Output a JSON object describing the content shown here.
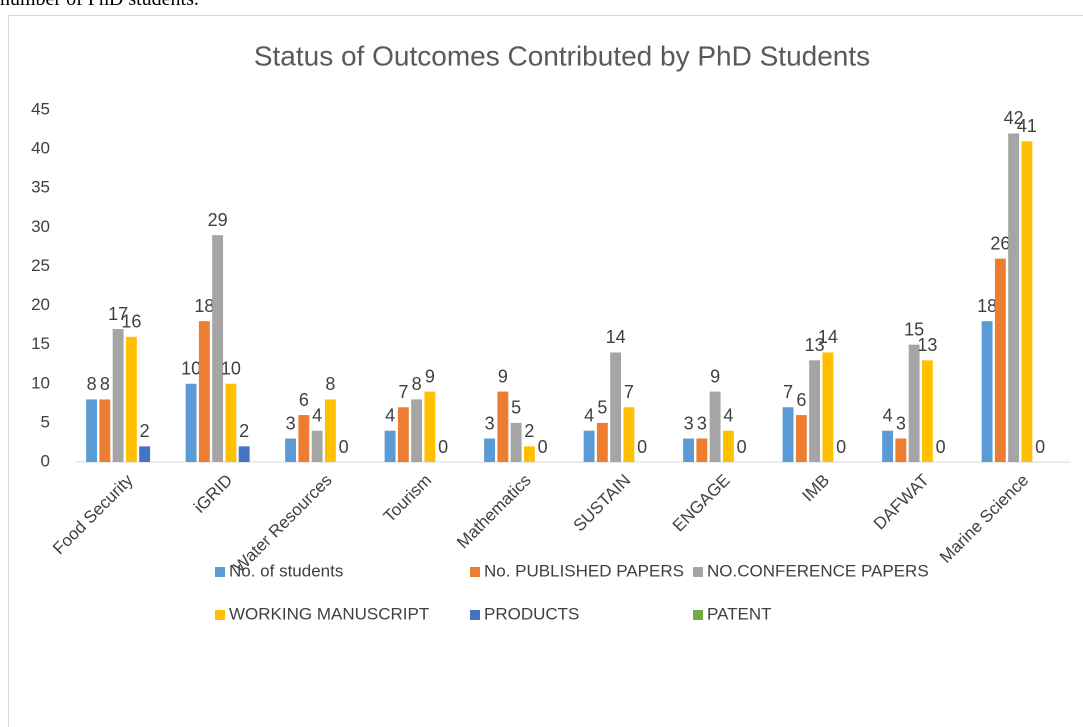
{
  "caption": "number of PhD students.",
  "chart_data": {
    "type": "bar",
    "title": "Status of Outcomes Contributed by PhD Students",
    "categories": [
      "Food Security",
      "iGRID",
      "Water Resources",
      "Tourism",
      "Mathematics",
      "SUSTAIN",
      "ENGAGE",
      "IMB",
      "DAFWAT",
      "Marine Science"
    ],
    "series": [
      {
        "name": "No. of students",
        "color": "#5b9bd5",
        "values": [
          8,
          10,
          3,
          4,
          3,
          4,
          3,
          7,
          4,
          18
        ]
      },
      {
        "name": "No. PUBLISHED PAPERS",
        "color": "#ed7d31",
        "values": [
          8,
          18,
          6,
          7,
          9,
          5,
          3,
          6,
          3,
          26
        ]
      },
      {
        "name": "NO.CONFERENCE PAPERS",
        "color": "#a5a5a5",
        "values": [
          17,
          29,
          4,
          8,
          5,
          14,
          9,
          13,
          15,
          42
        ]
      },
      {
        "name": "WORKING MANUSCRIPT",
        "color": "#ffc000",
        "values": [
          16,
          10,
          8,
          9,
          2,
          7,
          4,
          14,
          13,
          41
        ]
      },
      {
        "name": "PRODUCTS",
        "color": "#4472c4",
        "values": [
          2,
          2,
          0,
          0,
          0,
          0,
          0,
          0,
          0,
          0
        ]
      },
      {
        "name": "PATENT",
        "color": "#70ad47",
        "values": [
          null,
          null,
          null,
          null,
          null,
          null,
          null,
          null,
          null,
          null
        ]
      }
    ],
    "ylim": [
      0,
      45
    ],
    "yticks": [
      0,
      5,
      10,
      15,
      20,
      25,
      30,
      35,
      40,
      45
    ],
    "grid": false,
    "legend": "bottom"
  }
}
